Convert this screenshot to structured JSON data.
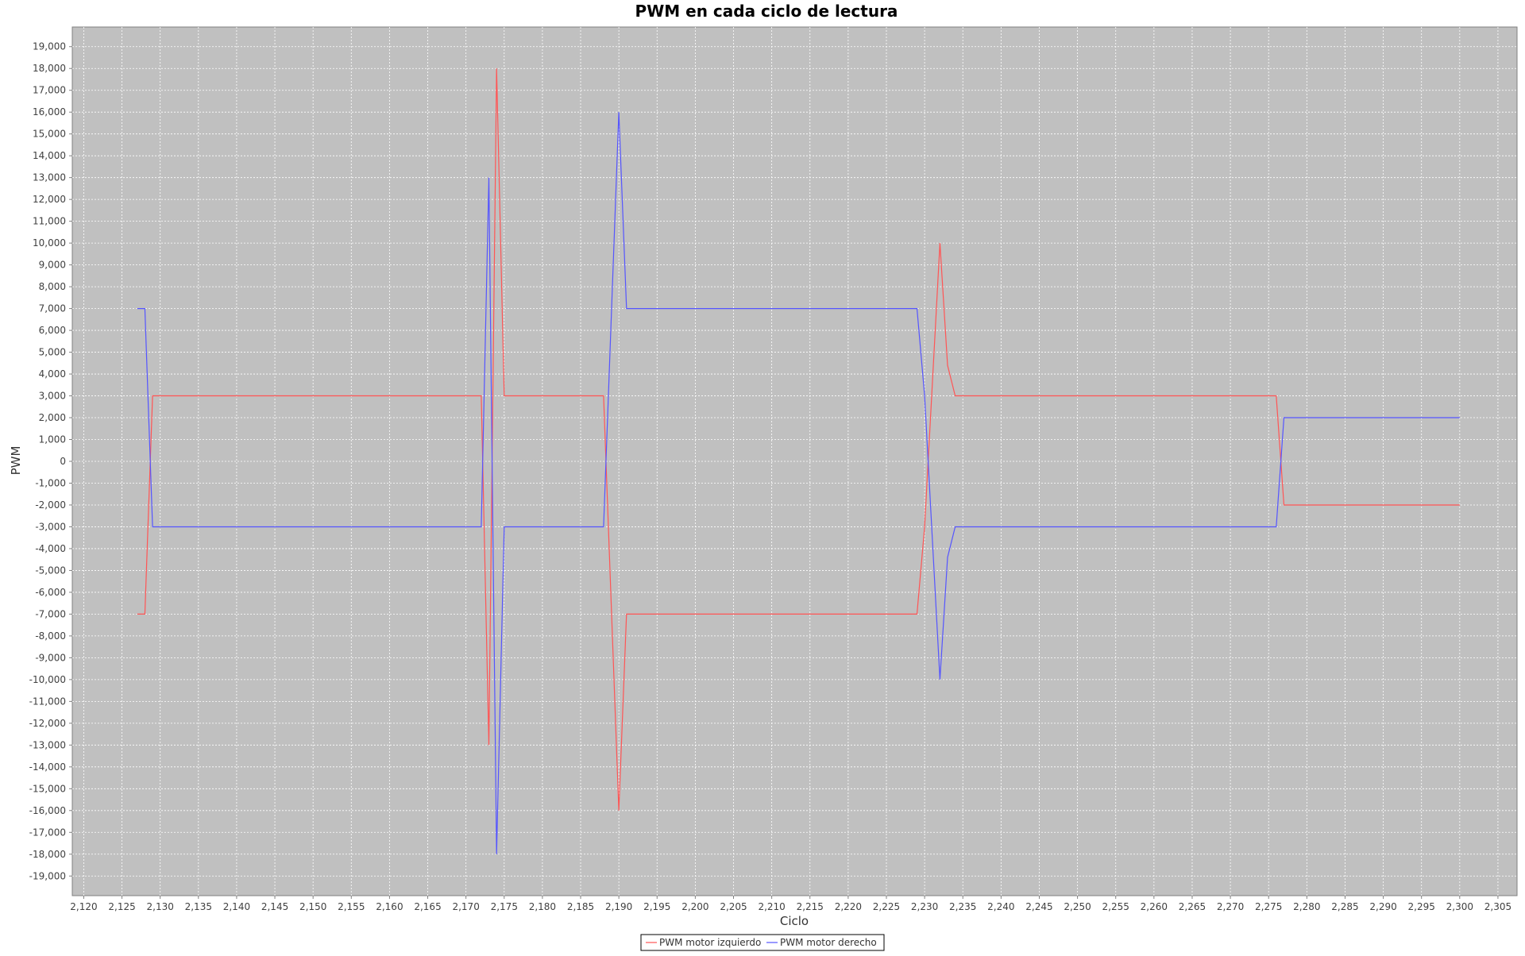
{
  "chart_data": {
    "type": "line",
    "title": "PWM en cada ciclo de lectura",
    "xlabel": "Ciclo",
    "ylabel": "PWM",
    "xlim": [
      2118.5,
      2307.5
    ],
    "ylim": [
      -19900,
      19900
    ],
    "x_ticks": [
      2120,
      2125,
      2130,
      2135,
      2140,
      2145,
      2150,
      2155,
      2160,
      2165,
      2170,
      2175,
      2180,
      2185,
      2190,
      2195,
      2200,
      2205,
      2210,
      2215,
      2220,
      2225,
      2230,
      2235,
      2240,
      2245,
      2250,
      2255,
      2260,
      2265,
      2270,
      2275,
      2280,
      2285,
      2290,
      2295,
      2300,
      2305
    ],
    "y_ticks": [
      -19000,
      -18000,
      -17000,
      -16000,
      -15000,
      -14000,
      -13000,
      -12000,
      -11000,
      -10000,
      -9000,
      -8000,
      -7000,
      -6000,
      -5000,
      -4000,
      -3000,
      -2000,
      -1000,
      0,
      1000,
      2000,
      3000,
      4000,
      5000,
      6000,
      7000,
      8000,
      9000,
      10000,
      11000,
      12000,
      13000,
      14000,
      15000,
      16000,
      17000,
      18000,
      19000
    ],
    "grid": true,
    "legend": "bottom-center",
    "background_color": "#c0c0c0",
    "series": [
      {
        "name": "PWM motor izquierdo",
        "color": "#ff5555",
        "points": [
          [
            2127,
            -7000
          ],
          [
            2128,
            -7000
          ],
          [
            2129,
            3000
          ],
          [
            2172,
            3000
          ],
          [
            2173,
            -13000
          ],
          [
            2174,
            18000
          ],
          [
            2175,
            3000
          ],
          [
            2188,
            3000
          ],
          [
            2190,
            -16000
          ],
          [
            2191,
            -7000
          ],
          [
            2229,
            -7000
          ],
          [
            2230,
            -3000
          ],
          [
            2232,
            10000
          ],
          [
            2233,
            4400
          ],
          [
            2234,
            3000
          ],
          [
            2276,
            3000
          ],
          [
            2277,
            -2000
          ],
          [
            2278,
            -2000
          ],
          [
            2300,
            -2000
          ]
        ]
      },
      {
        "name": "PWM motor derecho",
        "color": "#5555ff",
        "points": [
          [
            2127,
            7000
          ],
          [
            2128,
            7000
          ],
          [
            2129,
            -3000
          ],
          [
            2172,
            -3000
          ],
          [
            2173,
            13000
          ],
          [
            2174,
            -18000
          ],
          [
            2175,
            -3000
          ],
          [
            2188,
            -3000
          ],
          [
            2190,
            16000
          ],
          [
            2191,
            7000
          ],
          [
            2229,
            7000
          ],
          [
            2230,
            3000
          ],
          [
            2232,
            -10000
          ],
          [
            2233,
            -4400
          ],
          [
            2234,
            -3000
          ],
          [
            2276,
            -3000
          ],
          [
            2277,
            2000
          ],
          [
            2278,
            2000
          ],
          [
            2300,
            2000
          ]
        ]
      }
    ]
  }
}
